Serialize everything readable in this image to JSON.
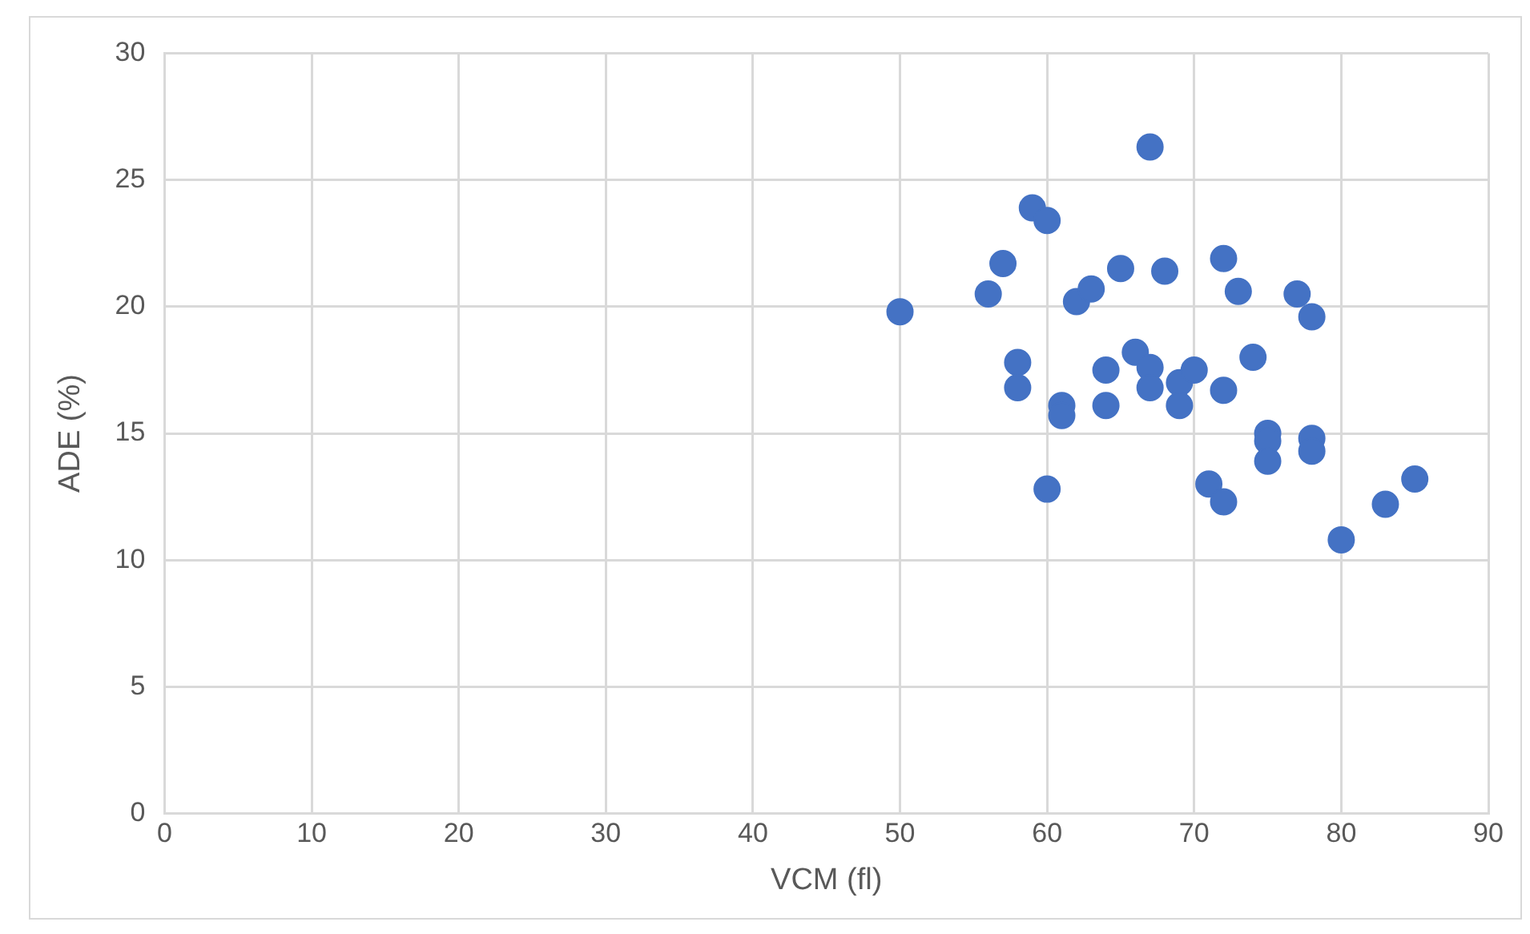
{
  "chart_data": {
    "type": "scatter",
    "xlabel": "VCM (fl)",
    "ylabel": "ADE (%)",
    "color": "#4472c4",
    "marker": "circle",
    "grid": true,
    "legend": false,
    "x": [
      50,
      56,
      57,
      58,
      58,
      59,
      60,
      60,
      61,
      61,
      62,
      63,
      64,
      64,
      65,
      66,
      67,
      67,
      67,
      68,
      69,
      69,
      70,
      71,
      72,
      72,
      72,
      73,
      74,
      75,
      75,
      75,
      77,
      78,
      78,
      78,
      80,
      83,
      85
    ],
    "values": [
      19.8,
      20.5,
      21.7,
      17.8,
      16.8,
      23.9,
      23.4,
      12.8,
      16.1,
      15.7,
      20.2,
      20.7,
      17.5,
      16.1,
      21.5,
      18.2,
      26.3,
      17.6,
      16.8,
      21.4,
      17.0,
      16.1,
      17.5,
      13.0,
      21.9,
      16.7,
      12.3,
      20.6,
      18.0,
      15.0,
      14.7,
      13.9,
      20.5,
      19.6,
      14.8,
      14.3,
      10.8,
      12.2,
      13.2
    ],
    "xlim": [
      0,
      90
    ],
    "xticks": [
      0,
      10,
      20,
      30,
      40,
      50,
      60,
      70,
      80,
      90
    ],
    "ylim": [
      0,
      30
    ],
    "yticks": [
      0,
      5,
      10,
      15,
      20,
      25,
      30
    ]
  }
}
